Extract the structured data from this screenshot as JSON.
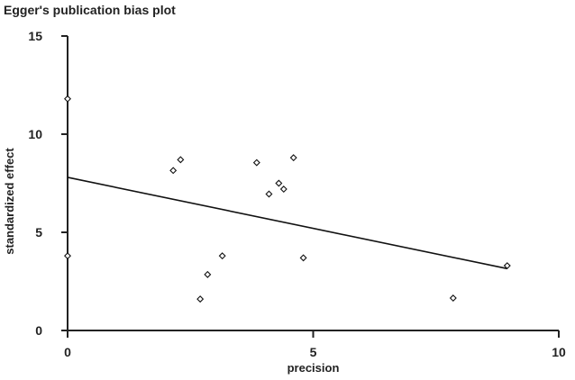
{
  "chart_data": {
    "type": "scatter",
    "title": "Egger's publication bias plot",
    "xlabel": "precision",
    "ylabel": "standardized effect",
    "xlim": [
      0,
      10
    ],
    "ylim": [
      0,
      15
    ],
    "xticks": [
      0,
      5,
      10
    ],
    "yticks": [
      0,
      5,
      10,
      15
    ],
    "x_tick_labels": [
      "0",
      "5",
      "10"
    ],
    "y_tick_labels": [
      "0",
      "5",
      "10",
      "15"
    ],
    "grid": false,
    "series": [
      {
        "marker": "hollow-diamond",
        "points": [
          {
            "x": 0.0,
            "y": 11.8
          },
          {
            "x": 0.0,
            "y": 3.8
          },
          {
            "x": 2.15,
            "y": 8.15
          },
          {
            "x": 2.3,
            "y": 8.7
          },
          {
            "x": 2.7,
            "y": 1.6
          },
          {
            "x": 2.85,
            "y": 2.85
          },
          {
            "x": 3.15,
            "y": 3.8
          },
          {
            "x": 3.85,
            "y": 8.55
          },
          {
            "x": 4.1,
            "y": 6.95
          },
          {
            "x": 4.3,
            "y": 7.5
          },
          {
            "x": 4.4,
            "y": 7.2
          },
          {
            "x": 4.6,
            "y": 8.8
          },
          {
            "x": 4.8,
            "y": 3.7
          },
          {
            "x": 7.85,
            "y": 1.65
          },
          {
            "x": 8.95,
            "y": 3.3
          }
        ]
      }
    ],
    "fit_line": {
      "x_start": 0.0,
      "y_start": 7.8,
      "x_end": 8.95,
      "y_end": 3.15
    }
  }
}
